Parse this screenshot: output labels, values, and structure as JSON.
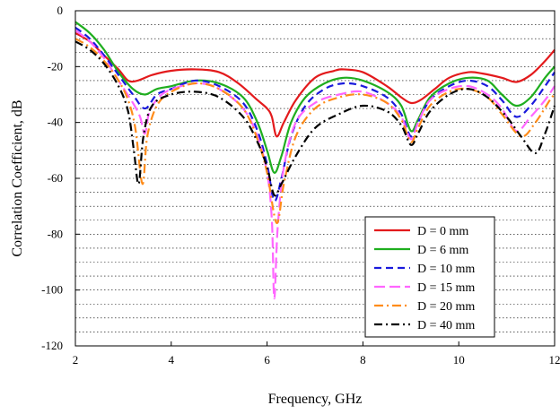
{
  "chart_data": {
    "type": "line",
    "title": "",
    "xlabel": "Frequency, GHz",
    "ylabel": "Correlation Coefficient, dB",
    "xlim": [
      2,
      12
    ],
    "ylim": [
      -120,
      0
    ],
    "x_ticks": [
      "2",
      "4",
      "6",
      "8",
      "10",
      "12"
    ],
    "y_ticks": [
      "0",
      "-20",
      "-40",
      "-60",
      "-80",
      "-100",
      "-120"
    ],
    "grid": "horizontal dotted",
    "legend_position": "bottom-right",
    "series": [
      {
        "name": "D = 0 mm",
        "color": "#e31a1c",
        "dash": "solid",
        "points": [
          [
            2,
            -8
          ],
          [
            2.3,
            -11
          ],
          [
            2.6,
            -16
          ],
          [
            2.9,
            -21
          ],
          [
            3.1,
            -25
          ],
          [
            3.3,
            -25
          ],
          [
            3.6,
            -23
          ],
          [
            4.0,
            -21.5
          ],
          [
            4.5,
            -21
          ],
          [
            5.0,
            -22
          ],
          [
            5.4,
            -26
          ],
          [
            5.8,
            -32
          ],
          [
            6.0,
            -35
          ],
          [
            6.1,
            -38
          ],
          [
            6.2,
            -45
          ],
          [
            6.35,
            -40
          ],
          [
            6.6,
            -32
          ],
          [
            7.0,
            -24
          ],
          [
            7.4,
            -21.5
          ],
          [
            7.6,
            -21
          ],
          [
            8.0,
            -22
          ],
          [
            8.5,
            -27
          ],
          [
            8.8,
            -31
          ],
          [
            9.0,
            -33
          ],
          [
            9.2,
            -32
          ],
          [
            9.5,
            -28
          ],
          [
            9.8,
            -24
          ],
          [
            10.2,
            -22
          ],
          [
            10.5,
            -22.5
          ],
          [
            10.9,
            -24
          ],
          [
            11.2,
            -25.5
          ],
          [
            11.5,
            -23
          ],
          [
            11.8,
            -18
          ],
          [
            12.0,
            -14
          ]
        ]
      },
      {
        "name": "D = 6 mm",
        "color": "#1fae1f",
        "dash": "solid",
        "points": [
          [
            2,
            -4
          ],
          [
            2.3,
            -8
          ],
          [
            2.6,
            -14
          ],
          [
            2.9,
            -22
          ],
          [
            3.2,
            -28
          ],
          [
            3.45,
            -30
          ],
          [
            3.7,
            -28
          ],
          [
            4.0,
            -27
          ],
          [
            4.5,
            -25
          ],
          [
            5.0,
            -26
          ],
          [
            5.5,
            -31
          ],
          [
            5.8,
            -40
          ],
          [
            6.0,
            -50
          ],
          [
            6.15,
            -58
          ],
          [
            6.3,
            -52
          ],
          [
            6.5,
            -40
          ],
          [
            6.8,
            -31
          ],
          [
            7.2,
            -26
          ],
          [
            7.6,
            -24
          ],
          [
            8.0,
            -25
          ],
          [
            8.5,
            -29
          ],
          [
            8.8,
            -34
          ],
          [
            9.0,
            -43
          ],
          [
            9.15,
            -39
          ],
          [
            9.4,
            -31
          ],
          [
            9.8,
            -26
          ],
          [
            10.2,
            -24
          ],
          [
            10.6,
            -25
          ],
          [
            10.9,
            -30
          ],
          [
            11.2,
            -34
          ],
          [
            11.5,
            -31
          ],
          [
            11.8,
            -24
          ],
          [
            12.0,
            -20
          ]
        ]
      },
      {
        "name": "D = 10 mm",
        "color": "#1a1adc",
        "dash": "8 5",
        "points": [
          [
            2,
            -6
          ],
          [
            2.3,
            -10
          ],
          [
            2.6,
            -16
          ],
          [
            2.9,
            -23
          ],
          [
            3.2,
            -30
          ],
          [
            3.45,
            -35
          ],
          [
            3.7,
            -30
          ],
          [
            4.0,
            -28
          ],
          [
            4.5,
            -25
          ],
          [
            5.0,
            -27
          ],
          [
            5.5,
            -33
          ],
          [
            5.8,
            -43
          ],
          [
            6.0,
            -55
          ],
          [
            6.15,
            -68
          ],
          [
            6.3,
            -60
          ],
          [
            6.5,
            -45
          ],
          [
            6.8,
            -34
          ],
          [
            7.2,
            -28
          ],
          [
            7.6,
            -26
          ],
          [
            8.0,
            -27
          ],
          [
            8.5,
            -31
          ],
          [
            8.8,
            -37
          ],
          [
            9.0,
            -45
          ],
          [
            9.15,
            -40
          ],
          [
            9.4,
            -32
          ],
          [
            9.8,
            -27
          ],
          [
            10.2,
            -25
          ],
          [
            10.6,
            -27
          ],
          [
            10.9,
            -32
          ],
          [
            11.2,
            -38
          ],
          [
            11.5,
            -34
          ],
          [
            11.8,
            -27
          ],
          [
            12.0,
            -22
          ]
        ]
      },
      {
        "name": "D = 15 mm",
        "color": "#ff66ff",
        "dash": "12 5",
        "points": [
          [
            2,
            -7
          ],
          [
            2.3,
            -11
          ],
          [
            2.6,
            -17
          ],
          [
            2.9,
            -25
          ],
          [
            3.2,
            -33
          ],
          [
            3.35,
            -38
          ],
          [
            3.45,
            -44
          ],
          [
            3.55,
            -36
          ],
          [
            3.8,
            -30
          ],
          [
            4.2,
            -27
          ],
          [
            4.6,
            -26
          ],
          [
            5.0,
            -28
          ],
          [
            5.5,
            -35
          ],
          [
            5.8,
            -45
          ],
          [
            6.0,
            -58
          ],
          [
            6.1,
            -75
          ],
          [
            6.15,
            -103
          ],
          [
            6.22,
            -78
          ],
          [
            6.35,
            -56
          ],
          [
            6.6,
            -40
          ],
          [
            7.0,
            -33
          ],
          [
            7.5,
            -30
          ],
          [
            8.0,
            -29
          ],
          [
            8.5,
            -33
          ],
          [
            8.8,
            -38
          ],
          [
            9.0,
            -46
          ],
          [
            9.15,
            -40
          ],
          [
            9.4,
            -32
          ],
          [
            9.8,
            -28
          ],
          [
            10.2,
            -27
          ],
          [
            10.6,
            -30
          ],
          [
            10.9,
            -35
          ],
          [
            11.2,
            -43
          ],
          [
            11.5,
            -38
          ],
          [
            11.8,
            -32
          ],
          [
            12.0,
            -27
          ]
        ]
      },
      {
        "name": "D = 20 mm",
        "color": "#ff8c1a",
        "dash": "10 4 2 4",
        "points": [
          [
            2,
            -10
          ],
          [
            2.3,
            -13
          ],
          [
            2.6,
            -18
          ],
          [
            2.9,
            -25
          ],
          [
            3.1,
            -32
          ],
          [
            3.25,
            -42
          ],
          [
            3.4,
            -62
          ],
          [
            3.5,
            -45
          ],
          [
            3.7,
            -34
          ],
          [
            4.0,
            -29
          ],
          [
            4.5,
            -26
          ],
          [
            5.0,
            -28
          ],
          [
            5.5,
            -35
          ],
          [
            5.8,
            -46
          ],
          [
            6.0,
            -58
          ],
          [
            6.2,
            -76
          ],
          [
            6.35,
            -62
          ],
          [
            6.6,
            -45
          ],
          [
            7.0,
            -35
          ],
          [
            7.5,
            -31
          ],
          [
            8.0,
            -30
          ],
          [
            8.5,
            -33
          ],
          [
            8.8,
            -39
          ],
          [
            9.0,
            -47
          ],
          [
            9.15,
            -42
          ],
          [
            9.4,
            -34
          ],
          [
            9.8,
            -29
          ],
          [
            10.2,
            -28
          ],
          [
            10.6,
            -31
          ],
          [
            10.9,
            -37
          ],
          [
            11.3,
            -45
          ],
          [
            11.6,
            -40
          ],
          [
            11.9,
            -32
          ],
          [
            12.0,
            -30
          ]
        ]
      },
      {
        "name": "D = 40 mm",
        "color": "#000000",
        "dash": "9 4 2 4",
        "points": [
          [
            2,
            -11
          ],
          [
            2.3,
            -14
          ],
          [
            2.6,
            -19
          ],
          [
            2.9,
            -27
          ],
          [
            3.1,
            -36
          ],
          [
            3.22,
            -50
          ],
          [
            3.32,
            -62
          ],
          [
            3.42,
            -45
          ],
          [
            3.6,
            -34
          ],
          [
            4.0,
            -30
          ],
          [
            4.5,
            -29
          ],
          [
            5.0,
            -31
          ],
          [
            5.5,
            -38
          ],
          [
            5.8,
            -47
          ],
          [
            6.0,
            -56
          ],
          [
            6.15,
            -66
          ],
          [
            6.3,
            -62
          ],
          [
            6.6,
            -52
          ],
          [
            7.0,
            -42
          ],
          [
            7.5,
            -37
          ],
          [
            8.0,
            -34
          ],
          [
            8.5,
            -36
          ],
          [
            8.8,
            -41
          ],
          [
            9.0,
            -48
          ],
          [
            9.15,
            -44
          ],
          [
            9.4,
            -36
          ],
          [
            9.8,
            -30
          ],
          [
            10.2,
            -28
          ],
          [
            10.6,
            -31
          ],
          [
            11.0,
            -38
          ],
          [
            11.3,
            -45
          ],
          [
            11.6,
            -51
          ],
          [
            11.8,
            -44
          ],
          [
            12.0,
            -34
          ]
        ]
      }
    ]
  }
}
